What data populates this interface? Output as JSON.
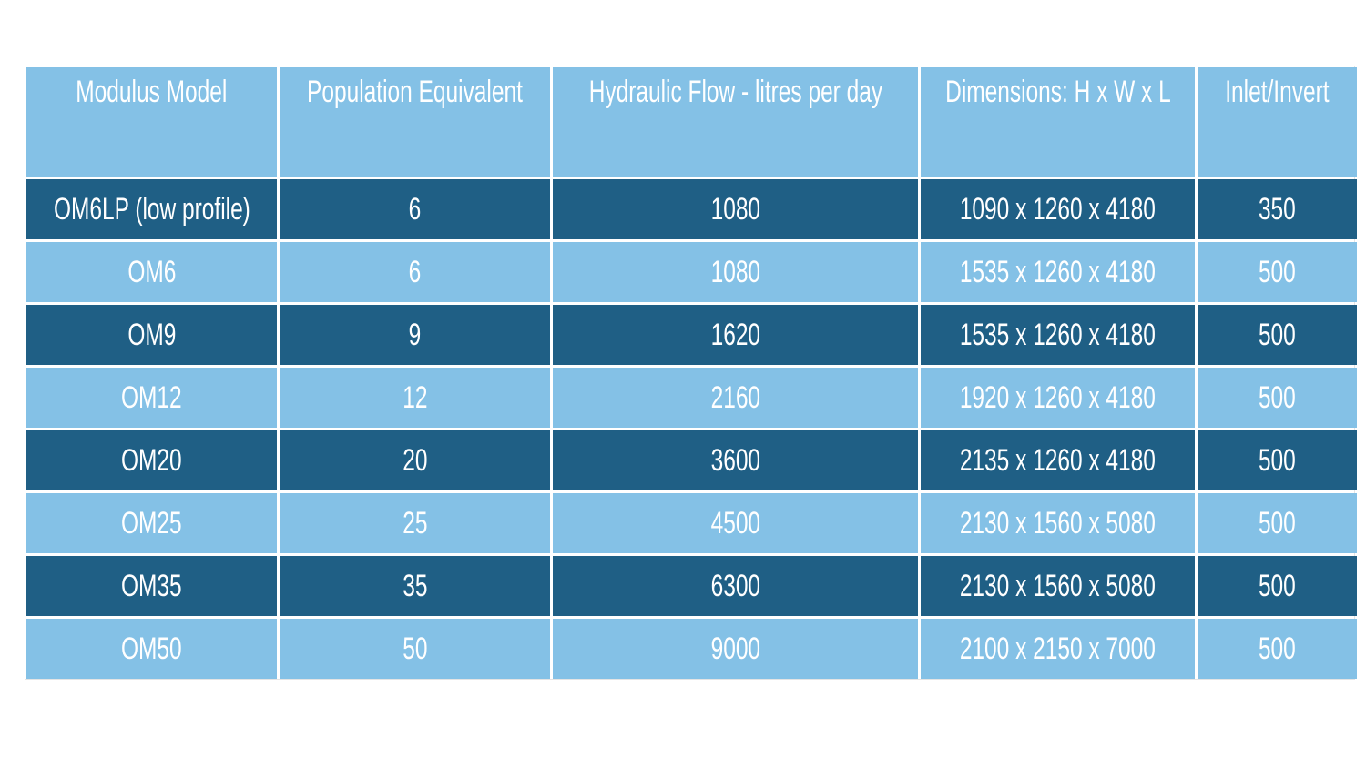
{
  "table": {
    "header": [
      "Modulus Model",
      "Population Equivalent",
      "Hydraulic Flow - litres per day",
      "Dimensions: H x W x L",
      "Inlet/Invert"
    ],
    "rows": [
      [
        "OM6LP (low profile)",
        6,
        1080,
        "1090 x 1260 x 4180",
        350
      ],
      [
        "OM6",
        6,
        1080,
        "1535 x 1260 x 4180",
        500
      ],
      [
        "OM9",
        9,
        1620,
        "1535 x 1260 x 4180",
        500
      ],
      [
        "OM12",
        12,
        2160,
        "1920 x 1260 x 4180",
        500
      ],
      [
        "OM20",
        20,
        3600,
        "2135 x 1260 x 4180",
        500
      ],
      [
        "OM25",
        25,
        4500,
        "2130 x 1560 x 5080",
        500
      ],
      [
        "OM35",
        35,
        6300,
        "2130 x 1560 x 5080",
        500
      ],
      [
        "OM50",
        50,
        9000,
        "2100 x 2150 x 7000",
        500
      ]
    ]
  }
}
